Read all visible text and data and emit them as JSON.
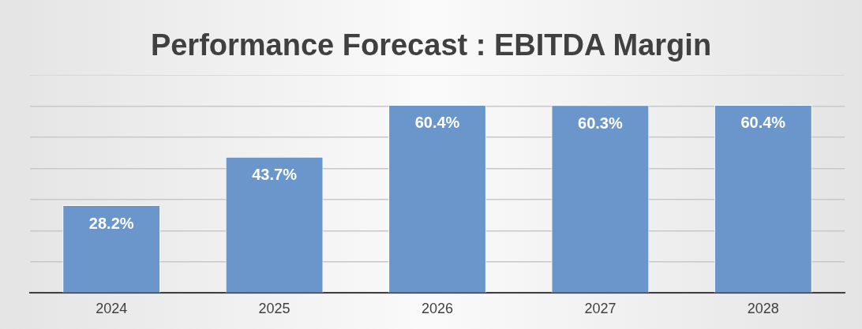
{
  "chart_data": {
    "type": "bar",
    "title": "Performance Forecast : EBITDA Margin",
    "categories": [
      "2024",
      "2025",
      "2026",
      "2027",
      "2028"
    ],
    "values": [
      28.2,
      43.7,
      60.4,
      60.3,
      60.4
    ],
    "value_labels": [
      "28.2%",
      "43.7%",
      "60.4%",
      "60.3%",
      "60.4%"
    ],
    "color": "#6a96cc",
    "ylim": [
      0,
      70
    ],
    "yticks": [
      {
        "value": 0,
        "label": null
      },
      {
        "value": 10,
        "label": null
      },
      {
        "value": 20,
        "label": null
      },
      {
        "value": 30,
        "label": null
      },
      {
        "value": 40,
        "label": null
      },
      {
        "value": 50,
        "label": null
      },
      {
        "value": 60,
        "label": null
      },
      {
        "value": 70,
        "label": null
      }
    ],
    "grid": "y",
    "tick_labels": "x",
    "legend": false
  }
}
